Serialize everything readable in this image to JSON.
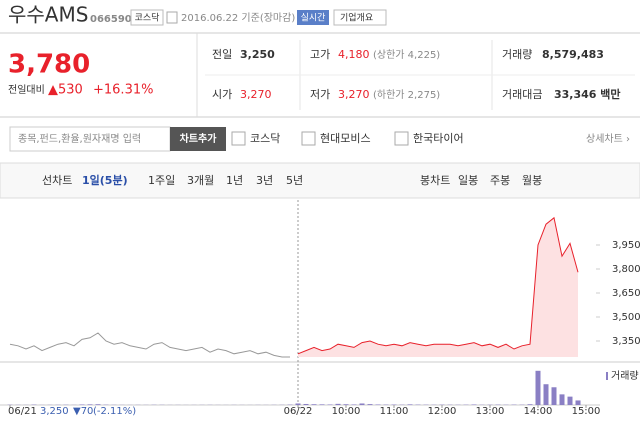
{
  "header": {
    "name": "우수AMS",
    "code": "066590",
    "market": "코스닥",
    "date": "2016.06.22 기준(장마감)",
    "realtime": "실시간",
    "company": "기업개요"
  },
  "quote": {
    "price": "3,780",
    "change_label": "전일대비",
    "change": "▲530",
    "change_pct": "+16.31%",
    "rows": [
      [
        {
          "label": "전일",
          "value": "3,250"
        },
        {
          "label": "고가",
          "value": "4,180",
          "note": "(상한가 4,225)"
        },
        {
          "label": "거래량",
          "value": "8,579,483"
        }
      ],
      [
        {
          "label": "시가",
          "value": "3,270"
        },
        {
          "label": "저가",
          "value": "3,270",
          "note": "(하한가 2,275)"
        },
        {
          "label": "거래대금",
          "value": "33,346 백만"
        }
      ]
    ]
  },
  "controls": {
    "placeholder": "종목,펀드,환율,원자재명 입력",
    "add": "차트추가",
    "compare": [
      "코스닥",
      "현대모비스",
      "한국타이어"
    ],
    "detail": "상세차트 ›"
  },
  "tabs": {
    "line_label": "선차트",
    "line": [
      "1일(5분)",
      "1주일",
      "3개월",
      "1년",
      "3년",
      "5년"
    ],
    "candle_label": "봉차트",
    "candle": [
      "일봉",
      "주봉",
      "월봉"
    ]
  },
  "footer": {
    "close": "3,250",
    "change": "▼70",
    "change_pct": "(-2.11%)"
  },
  "chart_data": {
    "type": "line",
    "categories": [
      "06/21",
      null,
      null,
      null,
      null,
      null,
      null,
      null,
      null,
      null,
      null,
      null,
      null,
      null,
      null,
      null,
      null,
      null,
      null,
      null,
      null,
      null,
      null,
      null,
      null,
      null,
      null,
      null,
      null,
      null,
      null,
      null,
      null,
      null,
      null,
      null,
      "06/22",
      null,
      null,
      null,
      null,
      null,
      "10:00",
      null,
      null,
      null,
      null,
      null,
      "11:00",
      null,
      null,
      null,
      null,
      null,
      "12:00",
      null,
      null,
      null,
      null,
      null,
      "13:00",
      null,
      null,
      null,
      null,
      null,
      "14:00",
      null,
      null,
      null,
      null,
      null,
      "15:00"
    ],
    "series": [
      {
        "color": "#999999",
        "values": [
          3330,
          3320,
          3300,
          3320,
          3290,
          3310,
          3330,
          3340,
          3320,
          3360,
          3370,
          3400,
          3350,
          3330,
          3340,
          3320,
          3310,
          3300,
          3330,
          3340,
          3310,
          3300,
          3290,
          3300,
          3310,
          3280,
          3300,
          3290,
          3270,
          3280,
          3290,
          3270,
          3280,
          3260,
          3250,
          3250,
          null,
          null,
          null,
          null,
          null,
          null,
          null,
          null,
          null,
          null,
          null,
          null,
          null,
          null,
          null,
          null,
          null,
          null,
          null,
          null,
          null,
          null,
          null,
          null,
          null,
          null,
          null,
          null,
          null,
          null,
          null,
          null,
          null,
          null,
          null,
          null,
          null
        ]
      },
      {
        "color": "#e8212b",
        "values": [
          null,
          null,
          null,
          null,
          null,
          null,
          null,
          null,
          null,
          null,
          null,
          null,
          null,
          null,
          null,
          null,
          null,
          null,
          null,
          null,
          null,
          null,
          null,
          null,
          null,
          null,
          null,
          null,
          null,
          null,
          null,
          null,
          null,
          null,
          null,
          null,
          3270,
          3290,
          3310,
          3290,
          3300,
          3330,
          3320,
          3310,
          3340,
          3350,
          3330,
          3320,
          3330,
          3320,
          3340,
          3330,
          3320,
          3330,
          3330,
          3330,
          3320,
          3330,
          3340,
          3320,
          3330,
          3310,
          3330,
          3300,
          3320,
          3330,
          3950,
          4080,
          4120,
          3880,
          3960,
          3780,
          null
        ]
      },
      {
        "name": "거래량",
        "color": "#8a7fc4",
        "axis": "y2",
        "values": [
          12000,
          8000,
          6000,
          15000,
          5000,
          7000,
          9000,
          10000,
          6000,
          20000,
          25000,
          30000,
          12000,
          8000,
          6000,
          5000,
          7000,
          6000,
          9000,
          8000,
          5000,
          6000,
          4000,
          5000,
          6000,
          7000,
          5000,
          4000,
          6000,
          5000,
          4000,
          6000,
          5000,
          7000,
          8000,
          15000,
          60000,
          40000,
          30000,
          25000,
          20000,
          45000,
          30000,
          20000,
          60000,
          35000,
          20000,
          15000,
          18000,
          12000,
          25000,
          15000,
          12000,
          10000,
          14000,
          12000,
          10000,
          12000,
          20000,
          10000,
          12000,
          15000,
          10000,
          14000,
          12000,
          30000,
          1350000,
          820000,
          700000,
          420000,
          330000,
          180000,
          null
        ]
      }
    ],
    "ylim": [
      3250,
      4200
    ],
    "yticks": [
      {
        "value": 3350,
        "label": "3,350"
      },
      {
        "value": 3500,
        "label": "3,500"
      },
      {
        "value": 3650,
        "label": "3,650"
      },
      {
        "value": 3800,
        "label": "3,800"
      },
      {
        "value": 3950,
        "label": "3,950"
      }
    ],
    "y2lim": [
      0,
      1500000
    ],
    "grid": false,
    "area": true
  }
}
